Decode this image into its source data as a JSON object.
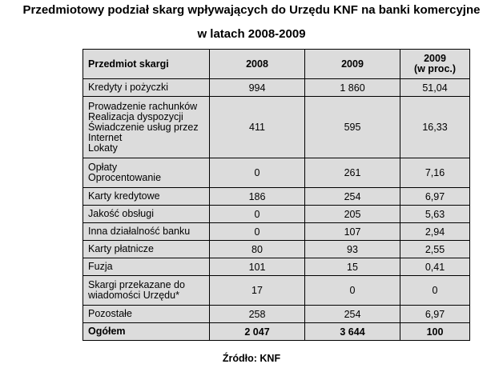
{
  "title": {
    "line1": "Przedmiotowy podział skarg wpływających do Urzędu KNF na banki komercyjne",
    "line2": "w latach 2008-2009"
  },
  "table": {
    "headers": [
      "Przedmiot skargi",
      "2008",
      "2009",
      "2009",
      "(w proc.)"
    ],
    "rows": [
      {
        "subject": [
          "Kredyty i pożyczki"
        ],
        "y2008": "994",
        "y2009": "1 860",
        "pct": "51,04"
      },
      {
        "subject": [
          "Prowadzenie rachunków",
          "Realizacja dyspozycji",
          "Świadczenie usług przez",
          "Internet",
          "Lokaty"
        ],
        "y2008": "411",
        "y2009": "595",
        "pct": "16,33"
      },
      {
        "subject": [
          "Opłaty",
          "Oprocentowanie"
        ],
        "y2008": "0",
        "y2009": "261",
        "pct": "7,16"
      },
      {
        "subject": [
          "Karty kredytowe"
        ],
        "y2008": "186",
        "y2009": "254",
        "pct": "6,97"
      },
      {
        "subject": [
          "Jakość obsługi"
        ],
        "y2008": "0",
        "y2009": "205",
        "pct": "5,63"
      },
      {
        "subject": [
          "Inna działalność banku"
        ],
        "y2008": "0",
        "y2009": "107",
        "pct": "2,94"
      },
      {
        "subject": [
          "Karty płatnicze"
        ],
        "y2008": "80",
        "y2009": "93",
        "pct": "2,55"
      },
      {
        "subject": [
          "Fuzja"
        ],
        "y2008": "101",
        "y2009": "15",
        "pct": "0,41"
      },
      {
        "subject": [
          "Skargi przekazane do",
          "wiadomości Urzędu*"
        ],
        "y2008": "17",
        "y2009": "0",
        "pct": "0"
      },
      {
        "subject": [
          "Pozostałe"
        ],
        "y2008": "258",
        "y2009": "254",
        "pct": "6,97"
      }
    ],
    "total": {
      "subject": "Ogółem",
      "y2008": "2 047",
      "y2009": "3 644",
      "pct": "100"
    }
  },
  "source": "Źródło: KNF"
}
